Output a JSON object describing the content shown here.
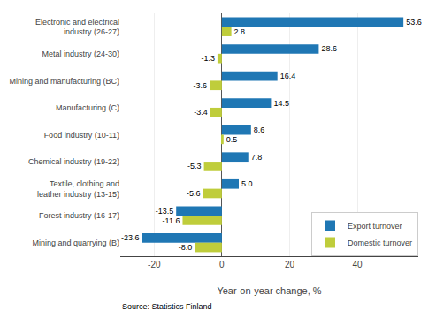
{
  "chart_data": {
    "type": "bar",
    "orientation": "horizontal",
    "categories": [
      "Electronic and electrical\nindustry (26-27)",
      "Metal industry (24-30)",
      "Mining and manufacturing (BC)",
      "Manufacturing (C)",
      "Food industry (10-11)",
      "Chemical industry (19-22)",
      "Textile, clothing and\nleather industry (13-15)",
      "Forest industry (16-17)",
      "Mining and quarrying (B)"
    ],
    "series": [
      {
        "name": "Export turnover",
        "color": "#1F77B4",
        "values": [
          53.6,
          28.6,
          16.4,
          14.5,
          8.6,
          7.8,
          5.0,
          -13.5,
          -23.6
        ],
        "value_labels": [
          "53.6",
          "28.6",
          "16.4",
          "14.5",
          "8.6",
          "7.8",
          "5.0",
          "-13.5",
          "-23.6"
        ]
      },
      {
        "name": "Domestic turnover",
        "color": "#BFCD3B",
        "values": [
          2.8,
          -1.3,
          -3.6,
          -3.4,
          0.5,
          -5.3,
          -5.6,
          -11.6,
          -8.0
        ],
        "value_labels": [
          "2.8",
          "-1.3",
          "-3.6",
          "-3.4",
          "0.5",
          "-5.3",
          "-5.6",
          "-11.6",
          "-8.0"
        ]
      }
    ],
    "xlabel": "Year-on-year change, %",
    "source": "Source: Statistics Finland",
    "xlim": [
      -30,
      58
    ],
    "xticks": [
      -20,
      0,
      20,
      40
    ],
    "grid": true,
    "legend": "lower right",
    "data_labels": true
  }
}
